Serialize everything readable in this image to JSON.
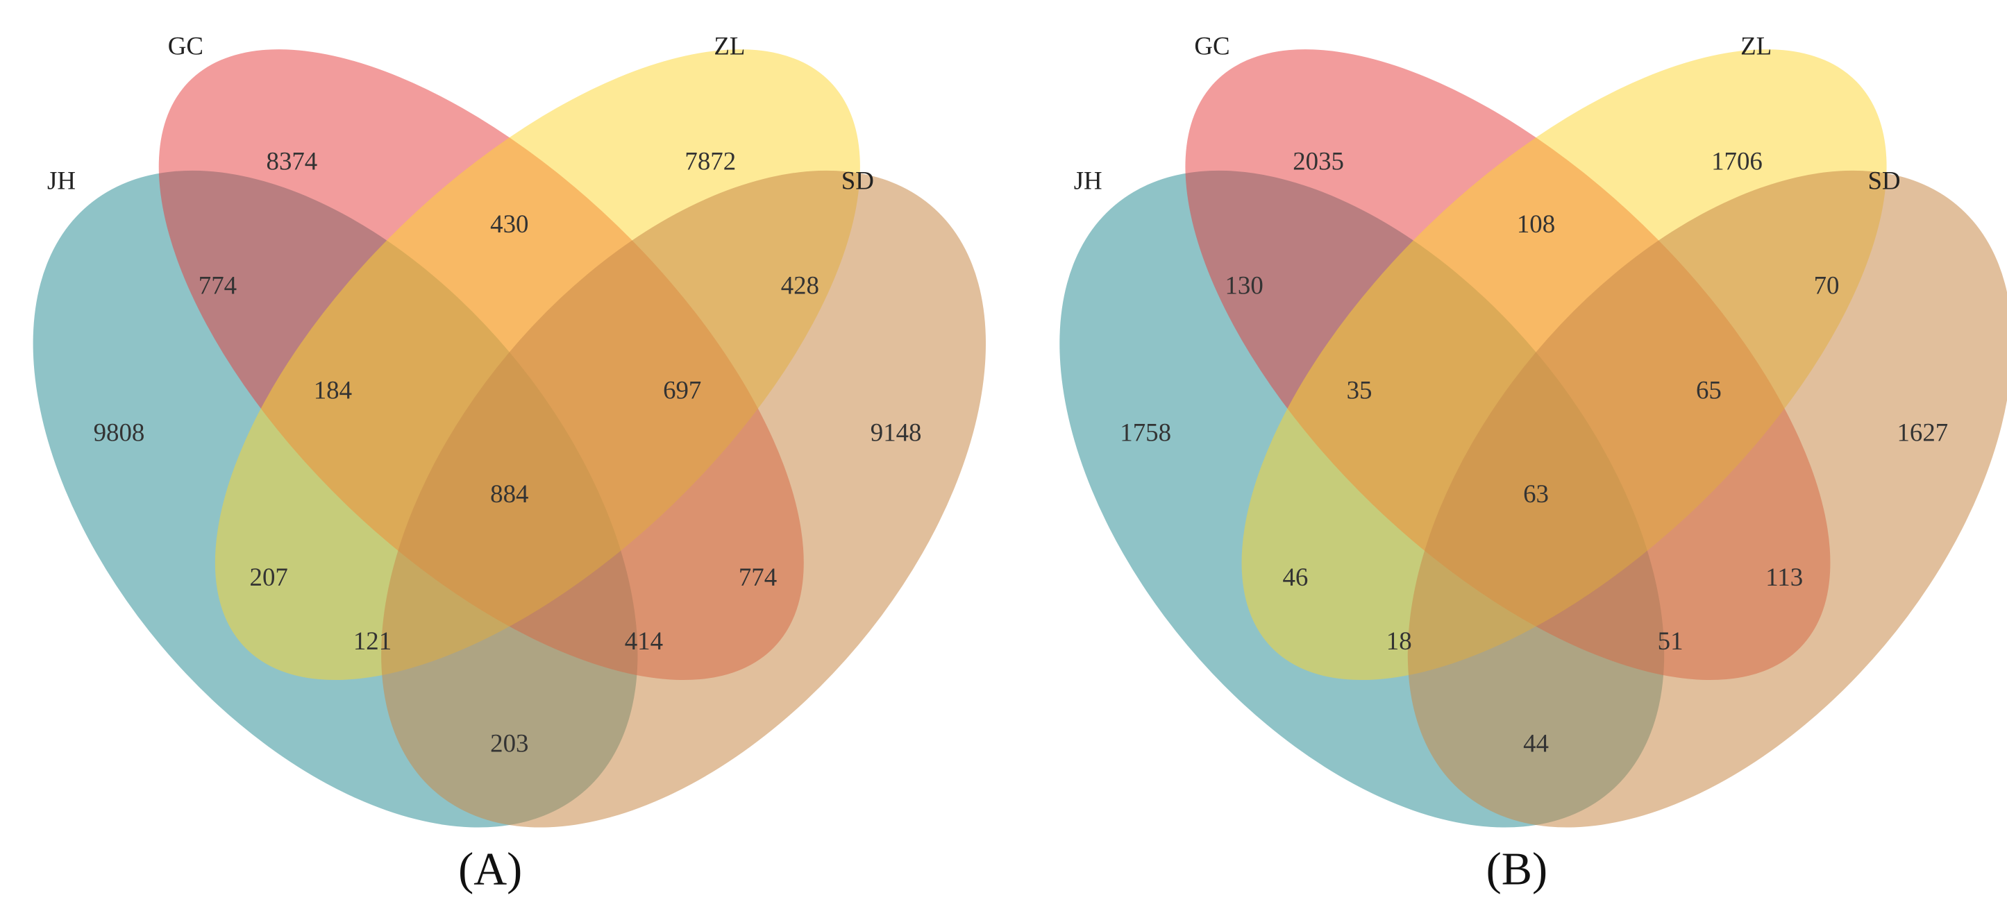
{
  "chart_data": [
    {
      "type": "venn",
      "sets": [
        "JH",
        "GC",
        "ZL",
        "SD"
      ],
      "colors": [
        "#1f8790",
        "#e5393a",
        "#fdd52e",
        "#c98b4b"
      ],
      "values": [
        9808,
        8374,
        7872,
        9148,
        774,
        430,
        428,
        184,
        697,
        884,
        207,
        774,
        121,
        414,
        203
      ],
      "caption": "(A)"
    },
    {
      "type": "venn",
      "sets": [
        "JH",
        "GC",
        "ZL",
        "SD"
      ],
      "colors": [
        "#1f8790",
        "#e5393a",
        "#fdd52e",
        "#c98b4b"
      ],
      "values": [
        1758,
        2035,
        1706,
        1627,
        130,
        108,
        70,
        35,
        65,
        63,
        46,
        113,
        18,
        51,
        44
      ],
      "caption": "(B)"
    }
  ]
}
